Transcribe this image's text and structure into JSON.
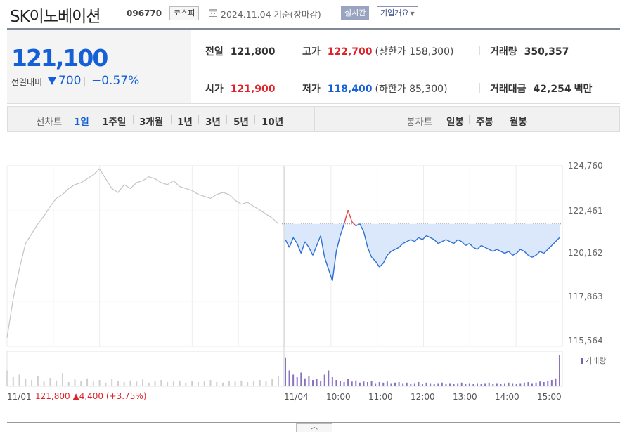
{
  "header": {
    "title": "SK이노베이션",
    "code": "096770",
    "market_badge": "코스피",
    "date_text": "2024.11.04 기준(장마감)",
    "realtime_button": "실시간",
    "company_button": "기업개요"
  },
  "price": {
    "current": "121,100",
    "compare_label": "전일대비",
    "change": "700",
    "change_pct": "−0.57%"
  },
  "info": {
    "prev_close_label": "전일",
    "prev_close": "121,800",
    "high_label": "고가",
    "high": "122,700",
    "upper_limit": "(상한가 158,300)",
    "volume_label": "거래량",
    "volume": "350,357",
    "open_label": "시가",
    "open": "121,900",
    "low_label": "저가",
    "low": "118,400",
    "lower_limit": "(하한가 85,300)",
    "trade_value_label": "거래대금",
    "trade_value": "42,254",
    "trade_value_unit": "백만"
  },
  "tabs": {
    "line_label": "선차트",
    "line_items": [
      "1일",
      "1주일",
      "3개월",
      "1년",
      "3년",
      "5년",
      "10년"
    ],
    "candle_label": "봉차트",
    "candle_items": [
      "일봉",
      "주봉",
      "월봉"
    ]
  },
  "chart_data": {
    "type": "line",
    "y_ticks": [
      "124,760",
      "122,461",
      "120,162",
      "117,863",
      "115,564"
    ],
    "x_ticks": [
      "11/04",
      "10:00",
      "11:00",
      "12:00",
      "13:00",
      "14:00",
      "15:00"
    ],
    "x_first_day": "11/01",
    "prev_close": 121800,
    "prev_day_summary": {
      "close": "121,800",
      "change": "4,400",
      "pct": "(+3.75%)"
    },
    "volume_legend": "거래량",
    "prev_day_series": [
      116000,
      118000,
      119500,
      120800,
      121300,
      121800,
      122200,
      122700,
      123100,
      123300,
      123600,
      123800,
      123900,
      124100,
      124300,
      124600,
      124100,
      123600,
      123400,
      123800,
      123600,
      123900,
      124000,
      124200,
      124100,
      123900,
      123800,
      124000,
      123700,
      123600,
      123500,
      123300,
      123200,
      123100,
      123300,
      123400,
      123300,
      123000,
      122800,
      122900,
      122700,
      122500,
      122300,
      122100,
      121800
    ],
    "today_series": [
      121000,
      120600,
      121100,
      120800,
      120300,
      120900,
      120600,
      120200,
      120700,
      121200,
      120100,
      119500,
      118900,
      120400,
      121200,
      121800,
      122500,
      121900,
      121700,
      121800,
      121400,
      120600,
      120100,
      119900,
      119600,
      119800,
      120200,
      120400,
      120500,
      120600,
      120800,
      120900,
      121000,
      120900,
      121100,
      121000,
      121200,
      121100,
      121000,
      120800,
      120900,
      121000,
      120900,
      120800,
      121000,
      120900,
      120700,
      120800,
      120600,
      120500,
      120700,
      120600,
      120500,
      120400,
      120500,
      120400,
      120300,
      120400,
      120200,
      120300,
      120500,
      120400,
      120200,
      120100,
      120200,
      120400,
      120300,
      120500,
      120700,
      120900,
      121100
    ],
    "prev_volume": [
      30,
      18,
      22,
      14,
      12,
      20,
      9,
      16,
      11,
      25,
      8,
      13,
      10,
      15,
      9,
      12,
      7,
      14,
      10,
      8,
      11,
      9,
      13,
      7,
      10,
      12,
      8,
      9,
      11,
      7,
      10,
      8,
      9,
      12,
      8,
      7,
      10,
      9,
      11,
      8,
      10,
      12,
      9,
      14,
      20
    ],
    "today_volume": [
      55,
      30,
      22,
      18,
      26,
      15,
      20,
      12,
      14,
      10,
      22,
      30,
      18,
      12,
      10,
      8,
      14,
      9,
      11,
      7,
      9,
      8,
      10,
      6,
      8,
      7,
      9,
      6,
      7,
      8,
      6,
      7,
      5,
      6,
      8,
      5,
      7,
      6,
      5,
      6,
      7,
      5,
      6,
      5,
      6,
      7,
      5,
      6,
      5,
      6,
      5,
      6,
      7,
      5,
      6,
      5,
      6,
      7,
      6,
      5,
      6,
      7,
      8,
      6,
      7,
      9,
      8,
      10,
      12,
      15,
      60
    ]
  }
}
